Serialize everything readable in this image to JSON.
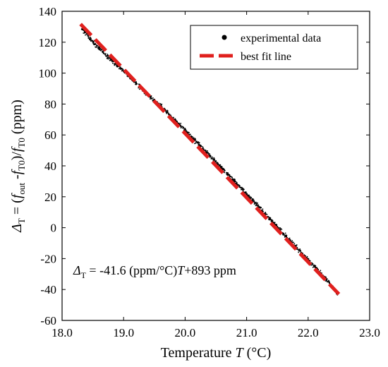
{
  "chart_data": {
    "type": "scatter",
    "xlabel_text": "Temperature ",
    "xlabel_var": "T",
    "xlabel_unit": " (°C)",
    "ylabel_delta": "Δ",
    "ylabel_delta_sub": "T",
    "ylabel_eq": " = (",
    "ylabel_f1": "f",
    "ylabel_f1_sub": "out",
    "ylabel_minus": " -",
    "ylabel_f2": "f",
    "ylabel_f2_sub": "T0",
    "ylabel_div": ")/",
    "ylabel_f3": "f",
    "ylabel_f3_sub": "T0",
    "ylabel_unit": " (ppm)",
    "xlim": [
      18.0,
      23.0
    ],
    "ylim": [
      -60,
      140
    ],
    "x_ticks": [
      18.0,
      19.0,
      20.0,
      21.0,
      22.0,
      23.0
    ],
    "x_tick_labels": [
      "18.0",
      "19.0",
      "20.0",
      "21.0",
      "22.0",
      "23.0"
    ],
    "y_ticks": [
      -60,
      -40,
      -20,
      0,
      20,
      40,
      60,
      80,
      100,
      120,
      140
    ],
    "y_tick_labels": [
      "-60",
      "-40",
      "-20",
      "0",
      "20",
      "40",
      "60",
      "80",
      "100",
      "120",
      "140"
    ],
    "grid": false,
    "legend_position": "top-right",
    "series": [
      {
        "name": "experimental data",
        "style": "points",
        "color": "#000000",
        "x_range": [
          18.3,
          22.5
        ],
        "points": [
          [
            18.32,
            128.5
          ],
          [
            18.4,
            125.2
          ],
          [
            18.5,
            120.0
          ],
          [
            18.6,
            116.5
          ],
          [
            18.7,
            112.0
          ],
          [
            18.8,
            108.7
          ],
          [
            18.9,
            104.5
          ],
          [
            19.0,
            101.2
          ],
          [
            19.1,
            97.4
          ],
          [
            19.2,
            93.6
          ],
          [
            19.3,
            89.8
          ],
          [
            19.4,
            86.0
          ],
          [
            19.5,
            82.1
          ],
          [
            19.6,
            79.0
          ],
          [
            19.7,
            75.0
          ],
          [
            19.8,
            70.7
          ],
          [
            19.9,
            67.3
          ],
          [
            20.0,
            63.0
          ],
          [
            20.1,
            58.8
          ],
          [
            20.2,
            55.0
          ],
          [
            20.3,
            50.8
          ],
          [
            20.4,
            46.5
          ],
          [
            20.5,
            42.6
          ],
          [
            20.6,
            38.5
          ],
          [
            20.7,
            34.3
          ],
          [
            20.8,
            30.2
          ],
          [
            20.9,
            26.0
          ],
          [
            21.0,
            22.0
          ],
          [
            21.1,
            17.6
          ],
          [
            21.2,
            13.5
          ],
          [
            21.3,
            9.0
          ],
          [
            21.4,
            5.0
          ],
          [
            21.5,
            0.6
          ],
          [
            21.6,
            -4.0
          ],
          [
            21.7,
            -8.2
          ],
          [
            21.8,
            -12.5
          ],
          [
            21.9,
            -16.6
          ],
          [
            22.0,
            -20.8
          ],
          [
            22.1,
            -25.0
          ],
          [
            22.2,
            -29.2
          ],
          [
            22.3,
            -33.6
          ],
          [
            22.4,
            -38.5
          ],
          [
            22.48,
            -43.0
          ]
        ]
      },
      {
        "name": "best fit line",
        "style": "dashed-line",
        "color": "#e0201e",
        "slope": -41.6,
        "intercept": 893,
        "x_range": [
          18.3,
          22.5
        ]
      }
    ],
    "annotation": {
      "delta": "Δ",
      "delta_sub": "T",
      "text_a": " = -41.6 (ppm/°C)",
      "var": "T",
      "text_b": "+893 ppm"
    }
  }
}
